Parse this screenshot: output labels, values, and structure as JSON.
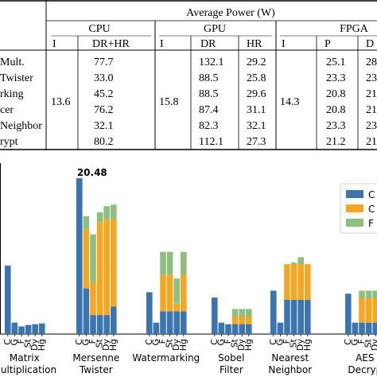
{
  "table": {
    "title": "Average Power (W)",
    "groups": [
      "CPU",
      "GPU",
      "FPGA"
    ],
    "subheaders": {
      "cpu": [
        "I",
        "DR+HR"
      ],
      "gpu": [
        "I",
        "DR",
        "HR"
      ],
      "fpga": [
        "I",
        "P",
        "D"
      ]
    },
    "row_labels": [
      "Mult.",
      "Twister",
      "rking",
      "cer",
      "Neighbor",
      "rypt"
    ],
    "cpu_idle": "13.6",
    "gpu_idle": "15.8",
    "fpga_idle": "14.3",
    "cpu_drhr": [
      "77.7",
      "33.0",
      "45.2",
      "76.2",
      "32.1",
      "80.2"
    ],
    "gpu_dr": [
      "132.1",
      "88.5",
      "88.5",
      "87.4",
      "82.3",
      "112.1"
    ],
    "gpu_hr": [
      "29.2",
      "25.8",
      "29.6",
      "31.1",
      "32.1",
      "27.3"
    ],
    "fpga_p": [
      "25.1",
      "23.3",
      "20.8",
      "20.8",
      "23.3",
      "21.2"
    ],
    "fpga_d": [
      "28",
      "23",
      "21",
      "21",
      "23",
      "21"
    ]
  },
  "chart_data": {
    "type": "bar",
    "stacked": true,
    "x_tick_labels": [
      "C",
      "G",
      "F",
      "St",
      "Dy",
      "Hg"
    ],
    "group_labels": [
      [
        "Matrix",
        "Multiplication"
      ],
      [
        "Mersenne",
        "Twister"
      ],
      [
        "Watermarking"
      ],
      [
        "Sobel",
        "Filter"
      ],
      [
        "Nearest",
        "Neighbor"
      ],
      [
        "AES",
        "Decryp"
      ]
    ],
    "series": [
      {
        "name": "C",
        "color": "#3b75af"
      },
      {
        "name": "C",
        "color": "#f5a623"
      },
      {
        "name": "F",
        "color": "#8fbf7f"
      }
    ],
    "annotation": "20.48",
    "ylim": [
      0,
      20.48
    ],
    "groups": [
      {
        "bars": [
          [
            9,
            0,
            0
          ],
          [
            1.5,
            0,
            0
          ],
          [
            1.0,
            0,
            0
          ],
          [
            1.2,
            0,
            0
          ],
          [
            1.3,
            0,
            0
          ],
          [
            1.4,
            0,
            0
          ]
        ]
      },
      {
        "bars": [
          [
            20.48,
            0,
            0
          ],
          [
            6,
            7.8,
            1.7
          ],
          [
            2.5,
            4.3,
            6.3
          ],
          [
            2.5,
            12.2,
            1.3
          ],
          [
            2.5,
            12.5,
            1.8
          ],
          [
            3.6,
            11.5,
            1.9
          ]
        ]
      },
      {
        "bars": [
          [
            5.5,
            0,
            0
          ],
          [
            1.5,
            0,
            0
          ],
          [
            3,
            4.8,
            3
          ],
          [
            3,
            4.8,
            3
          ],
          [
            3,
            1,
            3.3
          ],
          [
            3,
            4.8,
            3
          ]
        ]
      },
      {
        "bars": [
          [
            4.8,
            0,
            0
          ],
          [
            1.5,
            0,
            0
          ],
          [
            1.3,
            0,
            0
          ],
          [
            1.3,
            1.0,
            1
          ],
          [
            1.3,
            1.0,
            1
          ],
          [
            1.3,
            1.0,
            1
          ]
        ]
      },
      {
        "bars": [
          [
            5.7,
            0,
            0
          ],
          [
            1.5,
            0,
            0
          ],
          [
            4.5,
            4.7,
            0
          ],
          [
            4.5,
            4.7,
            0.2
          ],
          [
            4.5,
            4.7,
            0.9
          ],
          [
            4.5,
            4.7,
            0
          ]
        ]
      },
      {
        "bars": [
          [
            5.3,
            0,
            0
          ],
          [
            1.5,
            0,
            0
          ],
          [
            1.5,
            3.2,
            1
          ],
          [
            1.5,
            3.2,
            1
          ],
          [
            1.5,
            3.2,
            1
          ],
          [
            1.5,
            3.2,
            1
          ]
        ]
      }
    ]
  }
}
